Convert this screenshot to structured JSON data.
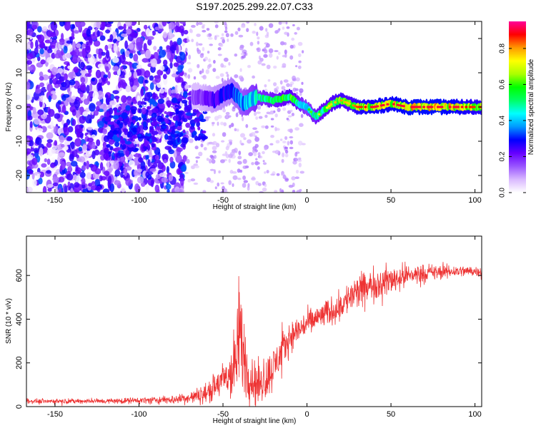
{
  "title": "S197.2025.299.22.07.C33",
  "chart_data": [
    {
      "type": "heatmap",
      "name": "spectrogram",
      "xlabel": "Height of straight line (km)",
      "ylabel": "Frequency (Hz)",
      "xlim": [
        -167,
        104
      ],
      "ylim": [
        -25,
        25
      ],
      "xticks": [
        -150,
        -100,
        -50,
        0,
        50,
        100
      ],
      "yticks": [
        -20,
        -10,
        0,
        10,
        20
      ],
      "colorbar": {
        "label": "Normalized spectral amplitude",
        "range": [
          0,
          0.95
        ],
        "ticks": [
          0.0,
          0.2,
          0.4,
          0.6,
          0.8
        ],
        "colors": [
          "#ffffff",
          "#d9b8ff",
          "#9955ff",
          "#6600ff",
          "#0000ff",
          "#0099ff",
          "#00ffff",
          "#00ff66",
          "#00ff00",
          "#aaff00",
          "#ffff00",
          "#ff9900",
          "#ff0000",
          "#ff0099"
        ]
      },
      "ridge": {
        "x": [
          -65,
          -55,
          -45,
          -38,
          -30,
          -20,
          -10,
          -5,
          0,
          5,
          10,
          15,
          20,
          25,
          30,
          40,
          50,
          60,
          70,
          80,
          90,
          100
        ],
        "freq": [
          3,
          2,
          5,
          1,
          3,
          2,
          3,
          1,
          0,
          -3,
          -1,
          1,
          2,
          1,
          0,
          0,
          1,
          0,
          0,
          0,
          0,
          0
        ],
        "amplitude": [
          0.2,
          0.3,
          0.35,
          0.45,
          0.55,
          0.6,
          0.7,
          0.6,
          0.5,
          0.6,
          0.65,
          0.7,
          0.75,
          0.7,
          0.8,
          0.85,
          0.85,
          0.9,
          0.9,
          0.9,
          0.85,
          0.8
        ]
      }
    },
    {
      "type": "line",
      "name": "snr",
      "xlabel": "Height of straight line (km)",
      "ylabel": "SNR (10 * v/v)",
      "xlim": [
        -167,
        104
      ],
      "ylim": [
        0,
        780
      ],
      "xticks": [
        -150,
        -100,
        -50,
        0,
        50,
        100
      ],
      "yticks": [
        0,
        200,
        400,
        600
      ],
      "color": "#ee3333",
      "envelope": {
        "x": [
          -167,
          -150,
          -120,
          -100,
          -90,
          -80,
          -70,
          -60,
          -55,
          -50,
          -45,
          -42,
          -40,
          -38,
          -35,
          -30,
          -25,
          -20,
          -15,
          -10,
          -5,
          0,
          5,
          10,
          20,
          25,
          30,
          40,
          50,
          60,
          70,
          80,
          90,
          100,
          104
        ],
        "base": [
          25,
          25,
          25,
          28,
          30,
          32,
          40,
          60,
          90,
          120,
          150,
          200,
          350,
          250,
          150,
          100,
          120,
          180,
          250,
          320,
          350,
          380,
          400,
          420,
          460,
          500,
          520,
          560,
          580,
          600,
          610,
          615,
          620,
          620,
          620
        ],
        "spread": [
          15,
          15,
          18,
          20,
          25,
          30,
          40,
          70,
          90,
          120,
          200,
          300,
          420,
          300,
          180,
          150,
          150,
          150,
          120,
          100,
          100,
          90,
          90,
          90,
          100,
          110,
          120,
          110,
          100,
          80,
          60,
          50,
          40,
          35,
          35
        ]
      }
    }
  ]
}
